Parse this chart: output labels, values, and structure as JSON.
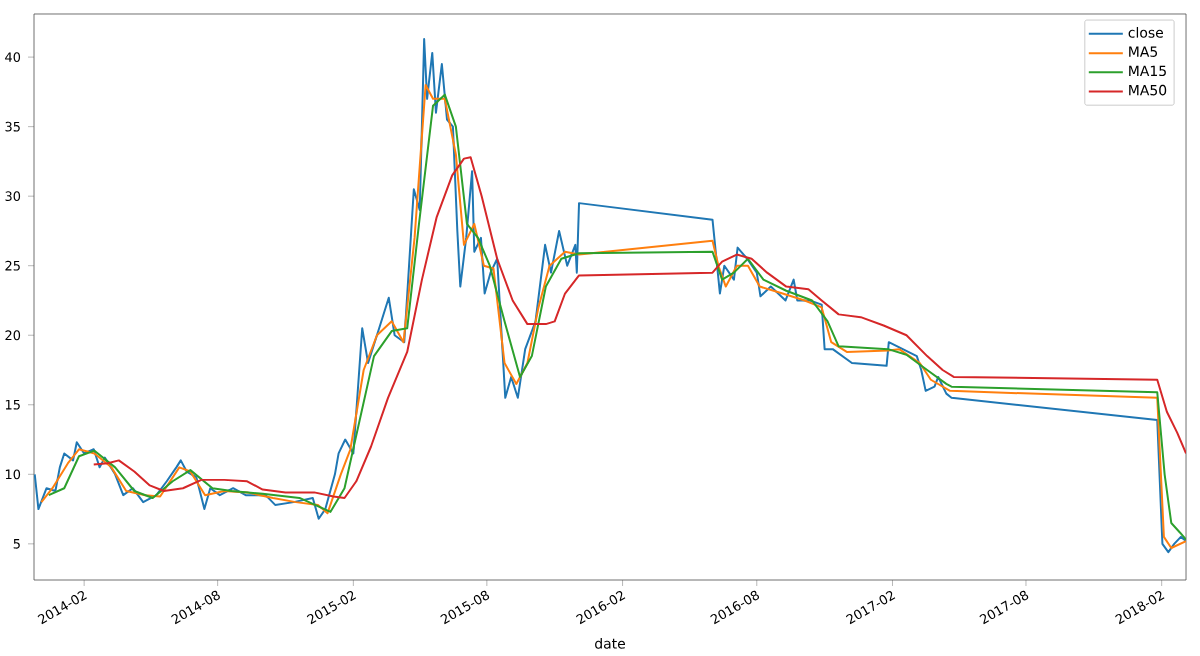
{
  "chart_data": {
    "type": "line",
    "xlabel": "date",
    "xlim": [
      "2013-11-25",
      "2018-03-06"
    ],
    "ylim": [
      2.4,
      43.1
    ],
    "xticks": [
      "2014-02",
      "2014-08",
      "2015-02",
      "2015-08",
      "2016-02",
      "2016-08",
      "2017-02",
      "2017-08",
      "2018-02"
    ],
    "yticks": [
      5,
      10,
      15,
      20,
      25,
      30,
      35,
      40
    ],
    "legend": "top right",
    "grid": false,
    "marker": "none",
    "line_style": "solid",
    "series": [
      {
        "name": "close",
        "color": "#1f77b4",
        "x": [
          "2013-11-26",
          "2013-12-01",
          "2013-12-12",
          "2013-12-24",
          "2013-12-30",
          "2014-01-05",
          "2014-01-17",
          "2014-01-22",
          "2014-02-01",
          "2014-02-14",
          "2014-02-22",
          "2014-03-01",
          "2014-03-15",
          "2014-03-26",
          "2014-04-08",
          "2014-04-22",
          "2014-05-10",
          "2014-05-24",
          "2014-06-06",
          "2014-06-12",
          "2014-06-20",
          "2014-07-03",
          "2014-07-14",
          "2014-07-22",
          "2014-08-04",
          "2014-08-22",
          "2014-09-08",
          "2014-10-05",
          "2014-10-18",
          "2014-11-12",
          "2014-12-08",
          "2014-12-16",
          "2014-12-25",
          "2015-01-07",
          "2015-01-12",
          "2015-01-21",
          "2015-02-01",
          "2015-02-13",
          "2015-02-21",
          "2015-03-08",
          "2015-03-21",
          "2015-03-29",
          "2015-04-11",
          "2015-04-24",
          "2015-05-02",
          "2015-05-08",
          "2015-05-12",
          "2015-05-19",
          "2015-05-24",
          "2015-06-01",
          "2015-06-08",
          "2015-06-16",
          "2015-06-22",
          "2015-06-26",
          "2015-07-04",
          "2015-07-12",
          "2015-07-15",
          "2015-07-24",
          "2015-07-29",
          "2015-08-06",
          "2015-08-15",
          "2015-08-26",
          "2015-09-03",
          "2015-09-12",
          "2015-09-22",
          "2015-10-06",
          "2015-10-19",
          "2015-10-27",
          "2015-11-07",
          "2015-11-18",
          "2015-11-29",
          "2015-12-01",
          "2015-12-04",
          "2016-06-02",
          "2016-06-12",
          "2016-06-18",
          "2016-07-01",
          "2016-07-06",
          "2016-07-19",
          "2016-08-01",
          "2016-08-06",
          "2016-08-20",
          "2016-09-09",
          "2016-09-20",
          "2016-09-25",
          "2016-10-12",
          "2016-10-28",
          "2016-11-01",
          "2016-11-12",
          "2016-12-08",
          "2017-01-24",
          "2017-01-27",
          "2017-02-15",
          "2017-03-06",
          "2017-03-12",
          "2017-03-18",
          "2017-03-30",
          "2017-04-04",
          "2017-04-15",
          "2017-04-22",
          "2018-01-26",
          "2018-02-02",
          "2018-02-10",
          "2018-02-18",
          "2018-02-27",
          "2018-03-06"
        ],
        "values": [
          10,
          7.5,
          9,
          8.8,
          10.5,
          11.5,
          11,
          12.3,
          11.5,
          11.8,
          10.5,
          11.2,
          10,
          8.5,
          9,
          8,
          8.5,
          9.5,
          10.5,
          11,
          10.2,
          9.8,
          7.5,
          9,
          8.5,
          9,
          8.5,
          8.5,
          7.8,
          8,
          8.3,
          6.8,
          7.5,
          10,
          11.5,
          12.5,
          11.5,
          20.5,
          18,
          20.5,
          22.7,
          20,
          19.5,
          30.5,
          29,
          41.3,
          37,
          40.3,
          36,
          39.5,
          35.5,
          35,
          27.5,
          23.5,
          27,
          31.8,
          26,
          27,
          23,
          24.5,
          25.5,
          15.5,
          17,
          15.5,
          19,
          21,
          26.5,
          24.5,
          27.5,
          25,
          26.5,
          24.5,
          29.5,
          28.3,
          23,
          25,
          24,
          26.3,
          25.5,
          24.5,
          22.8,
          23.5,
          22.5,
          24,
          22.5,
          22.5,
          22.2,
          19,
          19,
          18,
          17.8,
          19.5,
          19,
          18.5,
          17.5,
          16,
          16.3,
          17,
          15.8,
          15.5,
          13.9,
          5,
          4.4,
          5,
          5.5,
          5.2
        ]
      },
      {
        "name": "MA5",
        "color": "#ff7f0e",
        "x": [
          "2013-12-05",
          "2013-12-20",
          "2014-01-10",
          "2014-01-25",
          "2014-02-15",
          "2014-03-10",
          "2014-03-30",
          "2014-04-25",
          "2014-05-15",
          "2014-06-10",
          "2014-06-25",
          "2014-07-15",
          "2014-08-10",
          "2014-09-10",
          "2014-10-15",
          "2014-11-15",
          "2014-12-15",
          "2014-12-28",
          "2015-01-15",
          "2015-01-28",
          "2015-02-15",
          "2015-03-05",
          "2015-03-25",
          "2015-04-10",
          "2015-04-25",
          "2015-05-10",
          "2015-05-20",
          "2015-06-05",
          "2015-06-20",
          "2015-07-01",
          "2015-07-15",
          "2015-07-28",
          "2015-08-10",
          "2015-08-25",
          "2015-09-10",
          "2015-09-25",
          "2015-10-10",
          "2015-10-25",
          "2015-11-15",
          "2015-12-04",
          "2016-06-02",
          "2016-06-10",
          "2016-06-20",
          "2016-07-05",
          "2016-07-20",
          "2016-08-05",
          "2016-09-05",
          "2016-10-05",
          "2016-10-28",
          "2016-11-10",
          "2016-12-01",
          "2017-01-26",
          "2017-02-10",
          "2017-03-10",
          "2017-03-25",
          "2017-04-20",
          "2018-01-26",
          "2018-02-04",
          "2018-02-14",
          "2018-03-06"
        ],
        "values": [
          8,
          9,
          10.8,
          11.8,
          11.5,
          10.5,
          8.8,
          8.5,
          8.4,
          10.5,
          10.2,
          8.5,
          8.8,
          8.7,
          8.3,
          8,
          7.8,
          7.2,
          10,
          11.8,
          17.5,
          20,
          21,
          19.5,
          27,
          38,
          37,
          37,
          33,
          26.5,
          28,
          25,
          24.8,
          18,
          16.5,
          18,
          22,
          25,
          26,
          25.8,
          26.8,
          25,
          23.5,
          25,
          25,
          23.5,
          23,
          22.5,
          22,
          19.5,
          18.8,
          18.9,
          19,
          18,
          16.8,
          16,
          15.5,
          5.5,
          4.7,
          5.2
        ]
      },
      {
        "name": "MA15",
        "color": "#2ca02c",
        "x": [
          "2013-12-15",
          "2014-01-05",
          "2014-01-25",
          "2014-02-15",
          "2014-03-15",
          "2014-04-10",
          "2014-05-05",
          "2014-06-01",
          "2014-06-25",
          "2014-07-25",
          "2014-08-20",
          "2014-10-01",
          "2014-11-20",
          "2015-01-01",
          "2015-01-20",
          "2015-02-10",
          "2015-03-01",
          "2015-03-25",
          "2015-04-15",
          "2015-05-01",
          "2015-05-20",
          "2015-06-05",
          "2015-06-20",
          "2015-07-05",
          "2015-07-20",
          "2015-08-05",
          "2015-08-25",
          "2015-09-15",
          "2015-10-01",
          "2015-10-20",
          "2015-11-10",
          "2015-12-04",
          "2016-06-02",
          "2016-06-15",
          "2016-07-01",
          "2016-07-20",
          "2016-08-10",
          "2016-09-10",
          "2016-10-15",
          "2016-11-05",
          "2016-11-20",
          "2017-01-26",
          "2017-02-20",
          "2017-03-20",
          "2017-04-15",
          "2017-04-22",
          "2018-01-26",
          "2018-02-05",
          "2018-02-14",
          "2018-02-26",
          "2018-03-06"
        ],
        "values": [
          8.5,
          9,
          11.3,
          11.7,
          10.5,
          8.8,
          8.3,
          9.5,
          10.3,
          9,
          8.8,
          8.6,
          8.3,
          7.3,
          9,
          14,
          18.5,
          20.3,
          20.5,
          28,
          36.5,
          37.3,
          35,
          28,
          27,
          25,
          21,
          17,
          18.5,
          23.5,
          25.5,
          25.9,
          26,
          24,
          24.5,
          25.5,
          24,
          23.2,
          22.5,
          21,
          19.2,
          19,
          18.6,
          17.5,
          16.5,
          16.3,
          15.9,
          10,
          6.5,
          5.8,
          5.3
        ]
      },
      {
        "name": "MA50",
        "color": "#d62728",
        "x": [
          "2014-02-14",
          "2014-03-05",
          "2014-03-20",
          "2014-04-10",
          "2014-05-01",
          "2014-05-20",
          "2014-06-15",
          "2014-07-10",
          "2014-08-10",
          "2014-09-10",
          "2014-10-01",
          "2014-11-01",
          "2014-12-10",
          "2015-01-05",
          "2015-01-20",
          "2015-02-05",
          "2015-02-25",
          "2015-03-20",
          "2015-04-15",
          "2015-05-05",
          "2015-05-25",
          "2015-06-15",
          "2015-07-01",
          "2015-07-10",
          "2015-07-25",
          "2015-08-15",
          "2015-09-05",
          "2015-09-25",
          "2015-10-20",
          "2015-11-01",
          "2015-11-15",
          "2015-12-04",
          "2016-06-02",
          "2016-06-15",
          "2016-07-05",
          "2016-07-25",
          "2016-08-15",
          "2016-09-10",
          "2016-10-10",
          "2016-10-28",
          "2016-11-20",
          "2016-12-20",
          "2017-01-20",
          "2017-02-20",
          "2017-03-20",
          "2017-04-10",
          "2017-04-25",
          "2018-01-26",
          "2018-02-08",
          "2018-02-22",
          "2018-03-06"
        ],
        "values": [
          10.7,
          10.8,
          11,
          10.2,
          9.2,
          8.8,
          9,
          9.6,
          9.6,
          9.5,
          8.9,
          8.7,
          8.7,
          8.4,
          8.3,
          9.5,
          12,
          15.5,
          18.8,
          24,
          28.5,
          31.5,
          32.7,
          32.8,
          30,
          25.5,
          22.5,
          20.8,
          20.8,
          21,
          23,
          24.3,
          24.5,
          25.3,
          25.8,
          25.5,
          24.5,
          23.5,
          23.3,
          22.5,
          21.5,
          21.3,
          20.7,
          20,
          18.5,
          17.5,
          17,
          16.8,
          14.5,
          13,
          11.5
        ]
      }
    ]
  }
}
